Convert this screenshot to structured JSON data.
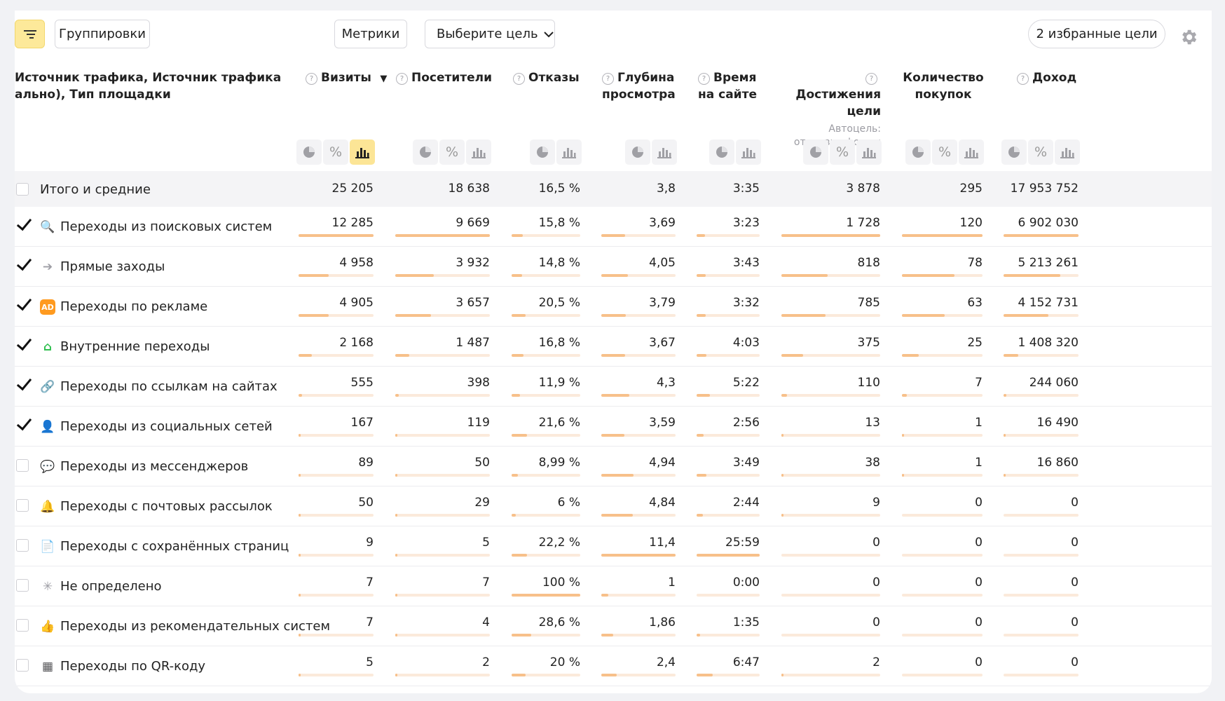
{
  "toolbar": {
    "groupings_label": "Группировки",
    "metrics_label": "Метрики",
    "goal_select_label": "Выберите цель",
    "favorites_label": "2 избранные цели"
  },
  "table": {
    "dimension_header_line1": "Источник трафика, Источник трафика",
    "dimension_header_line2": "ально), Тип площадки",
    "columns": [
      {
        "key": "visits",
        "line1": "Визиты",
        "line2": "",
        "sub": "",
        "sort": "▼",
        "help": true,
        "controls": [
          "pie",
          "percent",
          "bars"
        ],
        "active": "bars"
      },
      {
        "key": "visitors",
        "line1": "Посетители",
        "line2": "",
        "sub": "",
        "sort": "",
        "help": true,
        "controls": [
          "pie",
          "percent",
          "bars"
        ],
        "active": ""
      },
      {
        "key": "bounces",
        "line1": "Отказы",
        "line2": "",
        "sub": "",
        "sort": "",
        "help": true,
        "controls": [
          "pie",
          "bars"
        ],
        "active": ""
      },
      {
        "key": "depth",
        "line1": "Глубина",
        "line2": "просмотра",
        "sub": "",
        "sort": "",
        "help": true,
        "controls": [
          "pie",
          "bars"
        ],
        "active": ""
      },
      {
        "key": "time",
        "line1": "Время",
        "line2": "на сайте",
        "sub": "",
        "sort": "",
        "help": true,
        "controls": [
          "pie",
          "bars"
        ],
        "active": ""
      },
      {
        "key": "goals",
        "line1": "Достижения",
        "line2": "цели",
        "sub": "Автоцель: отправка формы",
        "sub1": "Автоцель:",
        "sub2": "отправка формы",
        "sort": "",
        "help": true,
        "controls": [
          "pie",
          "percent",
          "bars"
        ],
        "active": ""
      },
      {
        "key": "purchases",
        "line1": "Количество",
        "line2": "покупок",
        "sub": "",
        "sort": "",
        "help": false,
        "controls": [
          "pie",
          "percent",
          "bars"
        ],
        "active": ""
      },
      {
        "key": "revenue",
        "line1": "Доход",
        "line2": "",
        "sub": "",
        "sort": "",
        "help": true,
        "controls": [
          "pie",
          "percent",
          "bars"
        ],
        "active": ""
      }
    ],
    "total": {
      "label": "Итого и средние",
      "values": [
        "25 205",
        "18 638",
        "16,5 %",
        "3,8",
        "3:35",
        "3 878",
        "295",
        "17 953 752"
      ]
    },
    "rows": [
      {
        "label": "Переходы из поисковых систем",
        "checked": true,
        "icon": "search-icon",
        "icon_color": "#ff4433",
        "icon_glyph": "🔍",
        "values": [
          "12 285",
          "9 669",
          "15,8 %",
          "3,69",
          "3:23",
          "1 728",
          "120",
          "6 902 030"
        ],
        "fractions": [
          1.0,
          1.0,
          0.16,
          0.32,
          0.13,
          1.0,
          1.0,
          1.0
        ]
      },
      {
        "label": "Прямые заходы",
        "checked": true,
        "icon": "arrow-right-icon",
        "icon_color": "#9e9ea5",
        "icon_glyph": "➔",
        "values": [
          "4 958",
          "3 932",
          "14,8 %",
          "4,05",
          "3:43",
          "818",
          "78",
          "5 213 261"
        ],
        "fractions": [
          0.4,
          0.41,
          0.15,
          0.36,
          0.14,
          0.47,
          0.65,
          0.76
        ]
      },
      {
        "label": "Переходы по рекламе",
        "checked": true,
        "icon": "ad-icon",
        "icon_color": "#ff9a1f",
        "icon_glyph": "AD",
        "values": [
          "4 905",
          "3 657",
          "20,5 %",
          "3,79",
          "3:32",
          "785",
          "63",
          "4 152 731"
        ],
        "fractions": [
          0.4,
          0.38,
          0.2,
          0.33,
          0.14,
          0.45,
          0.53,
          0.6
        ]
      },
      {
        "label": "Внутренние переходы",
        "checked": true,
        "icon": "home-icon",
        "icon_color": "#2fbf4f",
        "icon_glyph": "⌂",
        "values": [
          "2 168",
          "1 487",
          "16,8 %",
          "3,67",
          "4:03",
          "375",
          "25",
          "1 408 320"
        ],
        "fractions": [
          0.18,
          0.15,
          0.17,
          0.32,
          0.16,
          0.22,
          0.21,
          0.2
        ]
      },
      {
        "label": "Переходы по ссылкам на сайтах",
        "checked": true,
        "icon": "link-icon",
        "icon_color": "#2d7ff9",
        "icon_glyph": "🔗",
        "values": [
          "555",
          "398",
          "11,9 %",
          "4,3",
          "5:22",
          "110",
          "7",
          "244 060"
        ],
        "fractions": [
          0.05,
          0.04,
          0.12,
          0.38,
          0.21,
          0.06,
          0.06,
          0.04
        ]
      },
      {
        "label": "Переходы из социальных сетей",
        "checked": true,
        "icon": "person-icon",
        "icon_color": "#8a4dd9",
        "icon_glyph": "👤",
        "values": [
          "167",
          "119",
          "21,6 %",
          "3,59",
          "2:56",
          "13",
          "1",
          "16 490"
        ],
        "fractions": [
          0.015,
          0.012,
          0.22,
          0.31,
          0.11,
          0.01,
          0.01,
          0.005
        ]
      },
      {
        "label": "Переходы из мессенджеров",
        "checked": false,
        "icon": "chat-icon",
        "icon_color": "#2ab3f3",
        "icon_glyph": "💬",
        "values": [
          "89",
          "50",
          "8,99 %",
          "4,94",
          "3:49",
          "38",
          "1",
          "16 860"
        ],
        "fractions": [
          0.008,
          0.005,
          0.09,
          0.43,
          0.15,
          0.02,
          0.01,
          0.005
        ]
      },
      {
        "label": "Переходы с почтовых рассылок",
        "checked": false,
        "icon": "bell-icon",
        "icon_color": "#ffb300",
        "icon_glyph": "🔔",
        "values": [
          "50",
          "29",
          "6 %",
          "4,84",
          "2:44",
          "9",
          "0",
          "0"
        ],
        "fractions": [
          0.004,
          0.003,
          0.06,
          0.42,
          0.1,
          0.005,
          0,
          0
        ]
      },
      {
        "label": "Переходы с сохранённых страниц",
        "checked": false,
        "icon": "document-icon",
        "icon_color": "#b07a4f",
        "icon_glyph": "📄",
        "values": [
          "9",
          "5",
          "22,2 %",
          "11,4",
          "25:59",
          "0",
          "0",
          "0"
        ],
        "fractions": [
          0.001,
          0.001,
          0.22,
          1.0,
          1.0,
          0,
          0,
          0
        ]
      },
      {
        "label": "Не определено",
        "checked": false,
        "icon": "spinner-icon",
        "icon_color": "#9e9ea5",
        "icon_glyph": "✳",
        "values": [
          "7",
          "7",
          "100 %",
          "1",
          "0:00",
          "0",
          "0",
          "0"
        ],
        "fractions": [
          0.001,
          0.001,
          1.0,
          0.09,
          0,
          0,
          0,
          0
        ]
      },
      {
        "label": "Переходы из рекомендательных систем",
        "checked": false,
        "icon": "thumbs-up-icon",
        "icon_color": "#ef4fa6",
        "icon_glyph": "👍",
        "values": [
          "7",
          "4",
          "28,6 %",
          "1,86",
          "1:35",
          "0",
          "0",
          "0"
        ],
        "fractions": [
          0.001,
          0.001,
          0.29,
          0.16,
          0.06,
          0,
          0,
          0
        ]
      },
      {
        "label": "Переходы по QR-коду",
        "checked": false,
        "icon": "qr-code-icon",
        "icon_color": "#555558",
        "icon_glyph": "▦",
        "values": [
          "5",
          "2",
          "20 %",
          "2,4",
          "6:47",
          "2",
          "0",
          "0"
        ],
        "fractions": [
          0.0005,
          0.0003,
          0.2,
          0.21,
          0.26,
          0.001,
          0,
          0
        ]
      }
    ]
  }
}
